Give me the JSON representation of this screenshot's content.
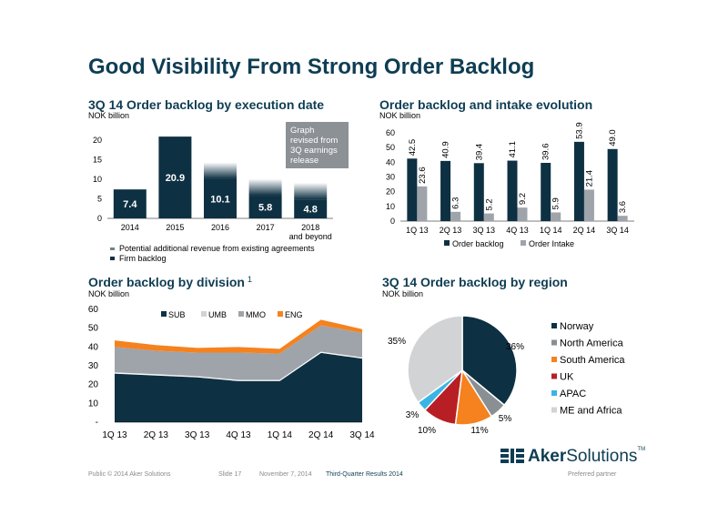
{
  "page_title": "Good Visibility From Strong Order Backlog",
  "colors": {
    "navy": "#0e3043",
    "gray": "#9fa4aa",
    "light_gray": "#d2d3d5",
    "orange": "#f5821f",
    "red": "#b81f24",
    "cyan": "#3bb4e5",
    "mid_gray": "#8a8f94",
    "title_blue": "#0e3d53"
  },
  "chart_data": [
    {
      "id": "execution",
      "type": "bar",
      "title": "3Q 14 Order backlog by execution date",
      "subtitle": "NOK billion",
      "categories": [
        "2014",
        "2015",
        "2016",
        "2017",
        "2018\nand beyond"
      ],
      "series": [
        {
          "name": "Firm backlog",
          "values": [
            7.4,
            20.9,
            10.1,
            5.8,
            4.8
          ]
        },
        {
          "name": "Potential additional revenue from existing agreements",
          "values": [
            0,
            0,
            4.2,
            4.3,
            4.3
          ]
        }
      ],
      "ylim": [
        0,
        20
      ],
      "yticks": [
        0,
        5,
        10,
        15,
        20
      ],
      "annotation": "Graph\nrevised from\n3Q earnings\nrelease"
    },
    {
      "id": "evolution",
      "type": "bar",
      "title": "Order backlog and intake evolution",
      "subtitle": "NOK billion",
      "categories": [
        "1Q 13",
        "2Q 13",
        "3Q 13",
        "4Q 13",
        "1Q 14",
        "2Q 14",
        "3Q 14"
      ],
      "series": [
        {
          "name": "Order backlog",
          "values": [
            42.5,
            40.9,
            39.4,
            41.1,
            39.6,
            53.9,
            49.0
          ]
        },
        {
          "name": "Order Intake",
          "values": [
            23.6,
            6.3,
            5.2,
            9.2,
            5.9,
            21.4,
            3.6
          ]
        }
      ],
      "value_labels": [
        [
          "42.5",
          "40.9",
          "39.4",
          "41.1",
          "39.6",
          "53.9",
          "49.0"
        ],
        [
          "23.6",
          "6.3",
          "5.2",
          "9.2",
          "5.9",
          "21.4",
          "3.6"
        ]
      ],
      "ylim": [
        0,
        60
      ],
      "yticks": [
        0,
        10,
        20,
        30,
        40,
        50,
        60
      ]
    },
    {
      "id": "division",
      "type": "area",
      "title": "Order backlog by division",
      "title_sup": "1",
      "subtitle": "NOK billion",
      "categories": [
        "1Q 13",
        "2Q 13",
        "3Q 13",
        "4Q 13",
        "1Q 14",
        "2Q 14",
        "3Q 14"
      ],
      "series": [
        {
          "name": "SUB",
          "values": [
            26.0,
            25.0,
            24.0,
            22.0,
            22.0,
            37.0,
            34.0
          ]
        },
        {
          "name": "UMB",
          "values": [
            0.5,
            0.5,
            0.5,
            0.5,
            0.5,
            0.5,
            0.5
          ]
        },
        {
          "name": "MMO",
          "values": [
            13.5,
            12.5,
            12.5,
            14.5,
            14.0,
            14.0,
            13.0
          ]
        },
        {
          "name": "ENG",
          "values": [
            3.5,
            3.0,
            2.5,
            3.0,
            2.5,
            3.0,
            2.0
          ]
        }
      ],
      "ylim": [
        0,
        60
      ],
      "ytick_labels": [
        "-",
        "10",
        "20",
        "30",
        "40",
        "50",
        "60"
      ],
      "legend_position": "top"
    },
    {
      "id": "region",
      "type": "pie",
      "title": "3Q  14 Order backlog by region",
      "subtitle": "NOK billion",
      "slices": [
        {
          "name": "Norway",
          "value": 36,
          "label": "36%"
        },
        {
          "name": "North America",
          "value": 5,
          "label": "5%"
        },
        {
          "name": "South America",
          "value": 11,
          "label": "11%"
        },
        {
          "name": "UK",
          "value": 10,
          "label": "10%"
        },
        {
          "name": "APAC",
          "value": 3,
          "label": "3%"
        },
        {
          "name": "ME and Africa",
          "value": 35,
          "label": "35%"
        }
      ],
      "legend_position": "right"
    }
  ],
  "logo": {
    "part1": "Aker",
    "part2": "Solutions",
    "mark": "TM"
  },
  "footer": {
    "classification": "Public © 2014 Aker Solutions",
    "slide": "Slide 17",
    "date": "November 7, 2014",
    "report": "Third-Quarter Results 2014",
    "partner": "Preferred partner"
  }
}
